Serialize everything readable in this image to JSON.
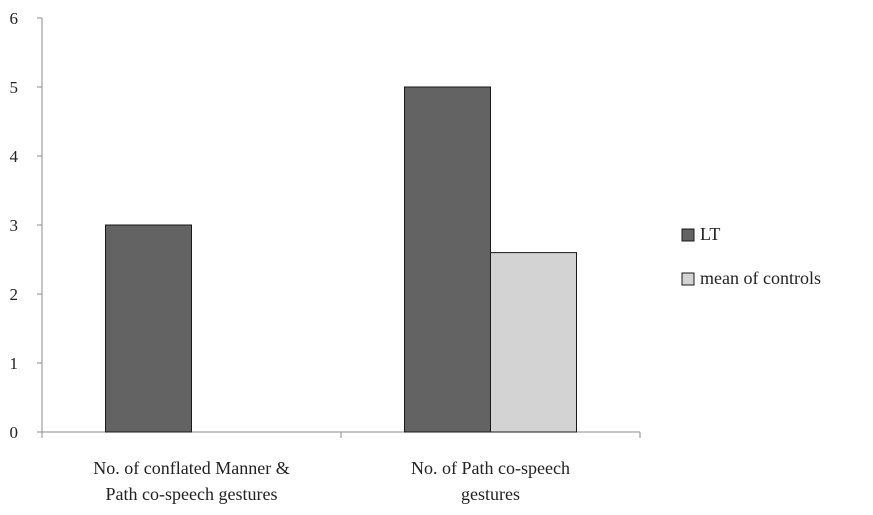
{
  "chart_data": {
    "type": "bar",
    "title": "",
    "xlabel": "",
    "ylabel": "",
    "categories": [
      [
        "No. of conflated Manner &",
        "Path co-speech gestures"
      ],
      [
        "No. of Path co-speech",
        "gestures"
      ]
    ],
    "series": [
      {
        "name": "LT",
        "values": [
          3,
          5
        ],
        "color": "#636363"
      },
      {
        "name": "mean of controls",
        "values": [
          null,
          2.6
        ],
        "color": "#d3d3d3"
      }
    ],
    "ylim": [
      0,
      6
    ],
    "yticks": [
      0,
      1,
      2,
      3,
      4,
      5,
      6
    ],
    "grid": false,
    "legend_position": "right"
  }
}
